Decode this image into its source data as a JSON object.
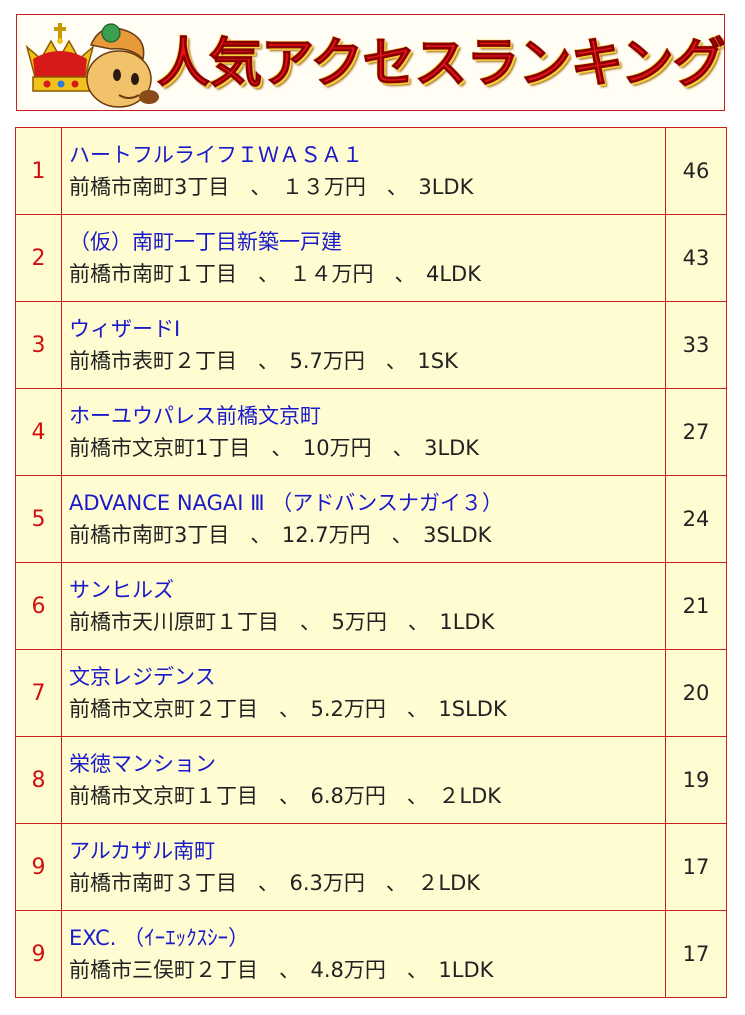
{
  "header": {
    "title": "人気アクセスランキング",
    "colors": {
      "title": "#e8141c",
      "title_outline": "#f5d340",
      "border": "#c81e1e",
      "row_bg": "#fffcd2",
      "link": "#1a1ac8",
      "rank": "#d01010"
    },
    "mascot_icon": "crowned-horse-mascot-icon"
  },
  "ranking": [
    {
      "rank": "1",
      "name": "ハートフルライフＩＷＡＳＡ１",
      "detail": "前橋市南町3丁目　、　１３万円　、　3LDK",
      "count": "46"
    },
    {
      "rank": "2",
      "name": "（仮）南町一丁目新築一戸建",
      "detail": "前橋市南町１丁目　、　１４万円　、　4LDK",
      "count": "43"
    },
    {
      "rank": "3",
      "name": "ウィザードⅠ",
      "detail": "前橋市表町２丁目　、　5.7万円　、　1SK",
      "count": "33"
    },
    {
      "rank": "4",
      "name": "ホーユウパレス前橋文京町",
      "detail": "前橋市文京町1丁目　、　10万円　、　3LDK",
      "count": "27"
    },
    {
      "rank": "5",
      "name": "ADVANCE NAGAI Ⅲ （アドバンスナガイ３）",
      "detail": "前橋市南町3丁目　、　12.7万円　、　3SLDK",
      "count": "24"
    },
    {
      "rank": "6",
      "name": "サンヒルズ",
      "detail": "前橋市天川原町１丁目　、　5万円　、　1LDK",
      "count": "21"
    },
    {
      "rank": "7",
      "name": "文京レジデンス",
      "detail": "前橋市文京町２丁目　、　5.2万円　、　1SLDK",
      "count": "20"
    },
    {
      "rank": "8",
      "name": "栄徳マンション",
      "detail": "前橋市文京町１丁目　、　6.8万円　、　２LDK",
      "count": "19"
    },
    {
      "rank": "9",
      "name": "アルカザル南町",
      "detail": "前橋市南町３丁目　、　6.3万円　、　２LDK",
      "count": "17"
    },
    {
      "rank": "9",
      "name": "EXC. （ｲｰｴｯｸｽｼｰ）",
      "detail": "前橋市三俣町２丁目　、　4.8万円　、　1LDK",
      "count": "17"
    }
  ]
}
